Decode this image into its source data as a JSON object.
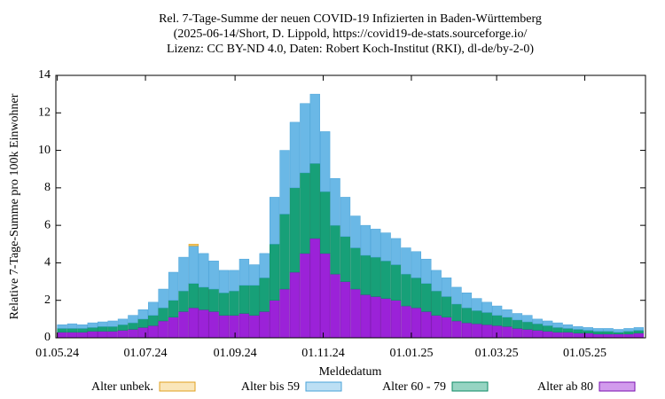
{
  "chart_data": {
    "type": "bar",
    "stacked": true,
    "title": [
      "Rel. 7-Tage-Summe der neuen COVID-19 Infizierten in Baden-Württemberg",
      "(2025-06-14/Short, D. Lippold, https://covid19-de-stats.sourceforge.io/",
      "Lizenz: CC BY-ND 4.0, Daten: Robert Koch-Institut (RKI), dl-de/by-2-0)"
    ],
    "xlabel": "Meldedatum",
    "ylabel": "Relative 7-Tage-Summe pro 100k Einwohner",
    "x": [
      "2024-05-01",
      "2024-05-08",
      "2024-05-15",
      "2024-05-22",
      "2024-05-29",
      "2024-06-05",
      "2024-06-12",
      "2024-06-19",
      "2024-06-26",
      "2024-07-03",
      "2024-07-10",
      "2024-07-17",
      "2024-07-24",
      "2024-07-31",
      "2024-08-07",
      "2024-08-14",
      "2024-08-21",
      "2024-08-28",
      "2024-09-04",
      "2024-09-11",
      "2024-09-18",
      "2024-09-25",
      "2024-10-02",
      "2024-10-09",
      "2024-10-16",
      "2024-10-23",
      "2024-10-30",
      "2024-11-06",
      "2024-11-13",
      "2024-11-20",
      "2024-11-27",
      "2024-12-04",
      "2024-12-11",
      "2024-12-18",
      "2024-12-25",
      "2025-01-01",
      "2025-01-08",
      "2025-01-15",
      "2025-01-22",
      "2025-01-29",
      "2025-02-05",
      "2025-02-12",
      "2025-02-19",
      "2025-02-26",
      "2025-03-05",
      "2025-03-12",
      "2025-03-19",
      "2025-03-26",
      "2025-04-02",
      "2025-04-09",
      "2025-04-16",
      "2025-04-23",
      "2025-04-30",
      "2025-05-07",
      "2025-05-14",
      "2025-05-21",
      "2025-05-28",
      "2025-06-04"
    ],
    "series": [
      {
        "name": "Alter unbek.",
        "color": "#f5c865",
        "stroke": "#e0a020",
        "values": [
          0,
          0,
          0,
          0,
          0,
          0,
          0,
          0,
          0,
          0,
          0,
          0,
          0,
          0.1,
          0,
          0,
          0,
          0,
          0,
          0,
          0,
          0,
          0,
          0,
          0,
          0,
          0,
          0,
          0,
          0,
          0,
          0,
          0,
          0,
          0,
          0,
          0,
          0,
          0,
          0,
          0,
          0,
          0,
          0,
          0,
          0,
          0,
          0,
          0,
          0,
          0,
          0,
          0,
          0,
          0,
          0,
          0,
          0
        ]
      },
      {
        "name": "Alter bis 59",
        "color": "#6ab8e6",
        "stroke": "#4aa3d8",
        "values": [
          0.2,
          0.25,
          0.2,
          0.25,
          0.25,
          0.3,
          0.3,
          0.4,
          0.5,
          0.7,
          1.0,
          1.5,
          1.8,
          2.0,
          1.8,
          1.5,
          1.2,
          1.1,
          1.4,
          1.1,
          1.3,
          2.5,
          3.4,
          3.5,
          3.7,
          3.7,
          3.2,
          2.5,
          2.1,
          1.7,
          1.6,
          1.5,
          1.5,
          1.4,
          1.4,
          1.4,
          1.3,
          1.1,
          1.0,
          0.9,
          0.8,
          0.65,
          0.55,
          0.5,
          0.4,
          0.35,
          0.35,
          0.25,
          0.25,
          0.25,
          0.2,
          0.15,
          0.15,
          0.15,
          0.15,
          0.15,
          0.15,
          0.15
        ]
      },
      {
        "name": "Alter 60 - 79",
        "color": "#17a078",
        "stroke": "#0e8a64",
        "values": [
          0.2,
          0.2,
          0.2,
          0.2,
          0.25,
          0.25,
          0.3,
          0.35,
          0.45,
          0.55,
          0.7,
          0.9,
          1.1,
          1.3,
          1.2,
          1.2,
          1.2,
          1.3,
          1.5,
          1.6,
          1.8,
          3.0,
          4.0,
          4.5,
          4.3,
          4.0,
          3.3,
          2.6,
          2.4,
          2.2,
          2.1,
          2.1,
          2.0,
          1.9,
          1.7,
          1.6,
          1.5,
          1.3,
          1.1,
          0.9,
          0.8,
          0.7,
          0.65,
          0.55,
          0.5,
          0.45,
          0.4,
          0.35,
          0.3,
          0.25,
          0.2,
          0.2,
          0.15,
          0.15,
          0.15,
          0.1,
          0.15,
          0.15
        ]
      },
      {
        "name": "Alter ab 80",
        "color": "#9b22d8",
        "stroke": "#7a10b0",
        "values": [
          0.3,
          0.3,
          0.3,
          0.35,
          0.35,
          0.35,
          0.4,
          0.45,
          0.55,
          0.65,
          0.9,
          1.1,
          1.4,
          1.6,
          1.5,
          1.4,
          1.2,
          1.2,
          1.3,
          1.2,
          1.4,
          2.0,
          2.6,
          3.5,
          4.5,
          5.3,
          4.5,
          3.4,
          3.0,
          2.6,
          2.3,
          2.2,
          2.1,
          2.0,
          1.7,
          1.6,
          1.4,
          1.2,
          1.1,
          0.9,
          0.8,
          0.75,
          0.7,
          0.65,
          0.6,
          0.5,
          0.45,
          0.4,
          0.35,
          0.3,
          0.3,
          0.25,
          0.25,
          0.2,
          0.2,
          0.2,
          0.2,
          0.25
        ]
      }
    ],
    "xlim": [
      "2024-04-30",
      "2025-06-12"
    ],
    "xticks": [
      {
        "value": "2024-05-01",
        "label": "01.05.24"
      },
      {
        "value": "2024-07-01",
        "label": "01.07.24"
      },
      {
        "value": "2024-09-01",
        "label": "01.09.24"
      },
      {
        "value": "2024-11-01",
        "label": "01.11.24"
      },
      {
        "value": "2025-01-01",
        "label": "01.01.25"
      },
      {
        "value": "2025-03-01",
        "label": "01.03.25"
      },
      {
        "value": "2025-05-01",
        "label": "01.05.25"
      }
    ],
    "ylim": [
      0,
      14
    ],
    "yticks": [
      0,
      2,
      4,
      6,
      8,
      10,
      12,
      14
    ],
    "legend": "bottom"
  }
}
